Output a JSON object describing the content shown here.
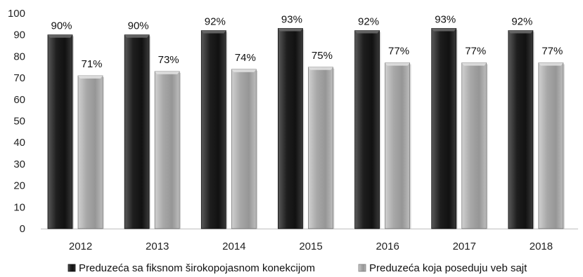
{
  "chart_data": {
    "type": "bar",
    "categories": [
      "2012",
      "2013",
      "2014",
      "2015",
      "2016",
      "2017",
      "2018"
    ],
    "series": [
      {
        "name": "Preduzeća sa fiksnom širokopojasnom konekcijom",
        "values": [
          90,
          90,
          92,
          93,
          92,
          93,
          92
        ],
        "labels": [
          "90%",
          "90%",
          "92%",
          "93%",
          "92%",
          "93%",
          "92%"
        ],
        "color": "#2a2a2a"
      },
      {
        "name": "Preduzeća koja poseduju veb sajt",
        "values": [
          71,
          73,
          74,
          75,
          77,
          77,
          77
        ],
        "labels": [
          "71%",
          "73%",
          "74%",
          "75%",
          "77%",
          "77%",
          "77%"
        ],
        "color": "#a6a6a6"
      }
    ],
    "ylim": [
      0,
      100
    ],
    "yticks": [
      "0",
      "10",
      "20",
      "30",
      "40",
      "50",
      "60",
      "70",
      "80",
      "90",
      "100"
    ],
    "title": "",
    "xlabel": "",
    "ylabel": "",
    "grid": false,
    "legend_position": "bottom"
  }
}
